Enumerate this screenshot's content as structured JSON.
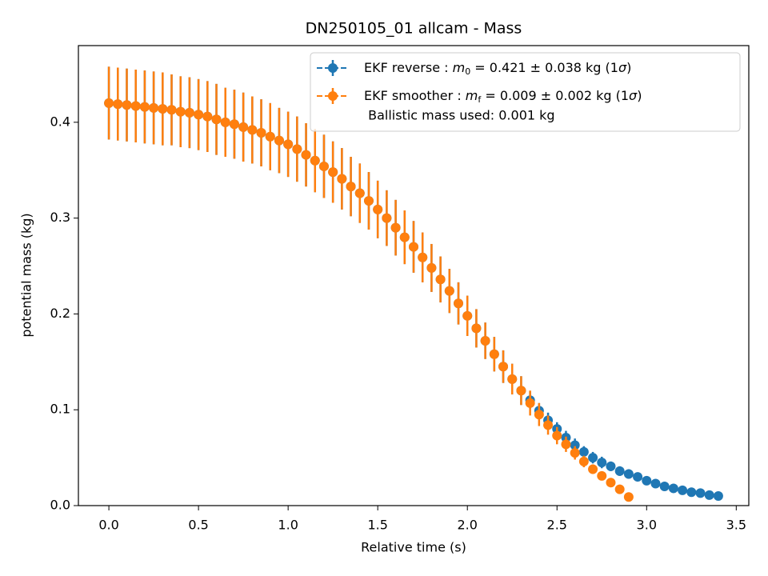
{
  "chart_data": {
    "type": "errorbar",
    "title": "DN250105_01 allcam - Mass",
    "xlabel": "Relative time (s)",
    "ylabel": "potential mass (kg)",
    "xlim": [
      -0.17,
      3.57
    ],
    "ylim": [
      0,
      0.48
    ],
    "xticks": [
      {
        "value": 0,
        "label": "0.0"
      },
      0.5,
      {
        "value": 1,
        "label": "1.0"
      },
      1.5,
      {
        "value": 2,
        "label": "2.0"
      },
      2.5,
      {
        "value": 3,
        "label": "3.0"
      },
      3.5
    ],
    "yticks": [
      {
        "value": 0,
        "label": "0.0"
      },
      0.1,
      0.2,
      0.3,
      0.4
    ],
    "legend_position": "upper right",
    "legend_note": " Ballistic mass used: 0.001 kg",
    "series": [
      {
        "name_parts": [
          "EKF reverse : ",
          "m",
          "0",
          " =  0.421 ± 0.038 kg (1",
          "σ",
          ")"
        ],
        "color": "#1f77b4",
        "x": [
          0,
          0.05,
          0.1,
          0.15,
          0.2,
          0.25,
          0.3,
          0.35,
          0.4,
          0.45,
          0.5,
          0.55,
          0.6,
          0.65,
          0.7,
          0.75,
          0.8,
          0.85,
          0.9,
          0.95,
          1.0,
          1.05,
          1.1,
          1.15,
          1.2,
          1.25,
          1.3,
          1.35,
          1.4,
          1.45,
          1.5,
          1.55,
          1.6,
          1.65,
          1.7,
          1.75,
          1.8,
          1.85,
          1.9,
          1.95,
          2.0,
          2.05,
          2.1,
          2.15,
          2.2,
          2.25,
          2.3,
          2.35,
          2.4,
          2.45,
          2.5,
          2.55,
          2.6,
          2.65,
          2.7,
          2.75,
          2.8,
          2.85,
          2.9,
          2.95,
          3.0,
          3.05,
          3.1,
          3.15,
          3.2,
          3.25,
          3.3,
          3.35,
          3.4
        ],
        "values": [
          0.42,
          0.419,
          0.418,
          0.417,
          0.416,
          0.415,
          0.414,
          0.413,
          0.411,
          0.41,
          0.408,
          0.406,
          0.403,
          0.4,
          0.398,
          0.395,
          0.392,
          0.389,
          0.385,
          0.381,
          0.377,
          0.372,
          0.366,
          0.36,
          0.354,
          0.348,
          0.341,
          0.333,
          0.326,
          0.318,
          0.309,
          0.3,
          0.29,
          0.28,
          0.27,
          0.259,
          0.248,
          0.236,
          0.224,
          0.211,
          0.198,
          0.185,
          0.172,
          0.158,
          0.145,
          0.132,
          0.12,
          0.11,
          0.099,
          0.089,
          0.08,
          0.071,
          0.063,
          0.056,
          0.05,
          0.045,
          0.041,
          0.036,
          0.033,
          0.03,
          0.026,
          0.023,
          0.02,
          0.018,
          0.016,
          0.014,
          0.013,
          0.011,
          0.01
        ],
        "errors": [
          0.038,
          0.038,
          0.038,
          0.038,
          0.038,
          0.038,
          0.038,
          0.037,
          0.037,
          0.037,
          0.037,
          0.037,
          0.037,
          0.036,
          0.036,
          0.036,
          0.035,
          0.035,
          0.035,
          0.034,
          0.034,
          0.034,
          0.033,
          0.033,
          0.033,
          0.032,
          0.032,
          0.031,
          0.031,
          0.03,
          0.03,
          0.029,
          0.029,
          0.028,
          0.027,
          0.026,
          0.025,
          0.024,
          0.023,
          0.022,
          0.021,
          0.02,
          0.019,
          0.018,
          0.017,
          0.016,
          0.015,
          0.009,
          0.008,
          0.008,
          0.007,
          0.007,
          0.007,
          0.006,
          0.006,
          0.006,
          0.005,
          0.005,
          0.005,
          0.004,
          0.004,
          0.004,
          0.003,
          0.003,
          0.003,
          0.002,
          0.002,
          0.002,
          0.002
        ]
      },
      {
        "name_parts": [
          "EKF smoother : ",
          "m",
          "f",
          " =  0.009 ± 0.002 kg (1",
          "σ",
          ")"
        ],
        "color": "#ff7f0e",
        "x": [
          0,
          0.05,
          0.1,
          0.15,
          0.2,
          0.25,
          0.3,
          0.35,
          0.4,
          0.45,
          0.5,
          0.55,
          0.6,
          0.65,
          0.7,
          0.75,
          0.8,
          0.85,
          0.9,
          0.95,
          1.0,
          1.05,
          1.1,
          1.15,
          1.2,
          1.25,
          1.3,
          1.35,
          1.4,
          1.45,
          1.5,
          1.55,
          1.6,
          1.65,
          1.7,
          1.75,
          1.8,
          1.85,
          1.9,
          1.95,
          2.0,
          2.05,
          2.1,
          2.15,
          2.2,
          2.25,
          2.3,
          2.35,
          2.4,
          2.45,
          2.5,
          2.55,
          2.6,
          2.65,
          2.7,
          2.75,
          2.8,
          2.85,
          2.9
        ],
        "values": [
          0.42,
          0.419,
          0.418,
          0.417,
          0.416,
          0.415,
          0.414,
          0.413,
          0.411,
          0.41,
          0.408,
          0.406,
          0.403,
          0.4,
          0.398,
          0.395,
          0.392,
          0.389,
          0.385,
          0.381,
          0.377,
          0.372,
          0.366,
          0.36,
          0.354,
          0.348,
          0.341,
          0.333,
          0.326,
          0.318,
          0.309,
          0.3,
          0.29,
          0.28,
          0.27,
          0.259,
          0.248,
          0.236,
          0.224,
          0.211,
          0.198,
          0.185,
          0.172,
          0.158,
          0.145,
          0.132,
          0.12,
          0.107,
          0.095,
          0.084,
          0.073,
          0.064,
          0.055,
          0.046,
          0.038,
          0.031,
          0.024,
          0.017,
          0.009
        ],
        "errors": [
          0.038,
          0.038,
          0.038,
          0.038,
          0.038,
          0.038,
          0.038,
          0.037,
          0.037,
          0.037,
          0.037,
          0.037,
          0.037,
          0.036,
          0.036,
          0.036,
          0.035,
          0.035,
          0.035,
          0.034,
          0.034,
          0.034,
          0.033,
          0.033,
          0.033,
          0.032,
          0.032,
          0.031,
          0.031,
          0.03,
          0.03,
          0.029,
          0.029,
          0.028,
          0.027,
          0.026,
          0.025,
          0.024,
          0.023,
          0.022,
          0.021,
          0.02,
          0.019,
          0.018,
          0.017,
          0.016,
          0.015,
          0.013,
          0.012,
          0.01,
          0.009,
          0.008,
          0.007,
          0.006,
          0.005,
          0.004,
          0.003,
          0.002,
          0.002
        ]
      }
    ]
  }
}
